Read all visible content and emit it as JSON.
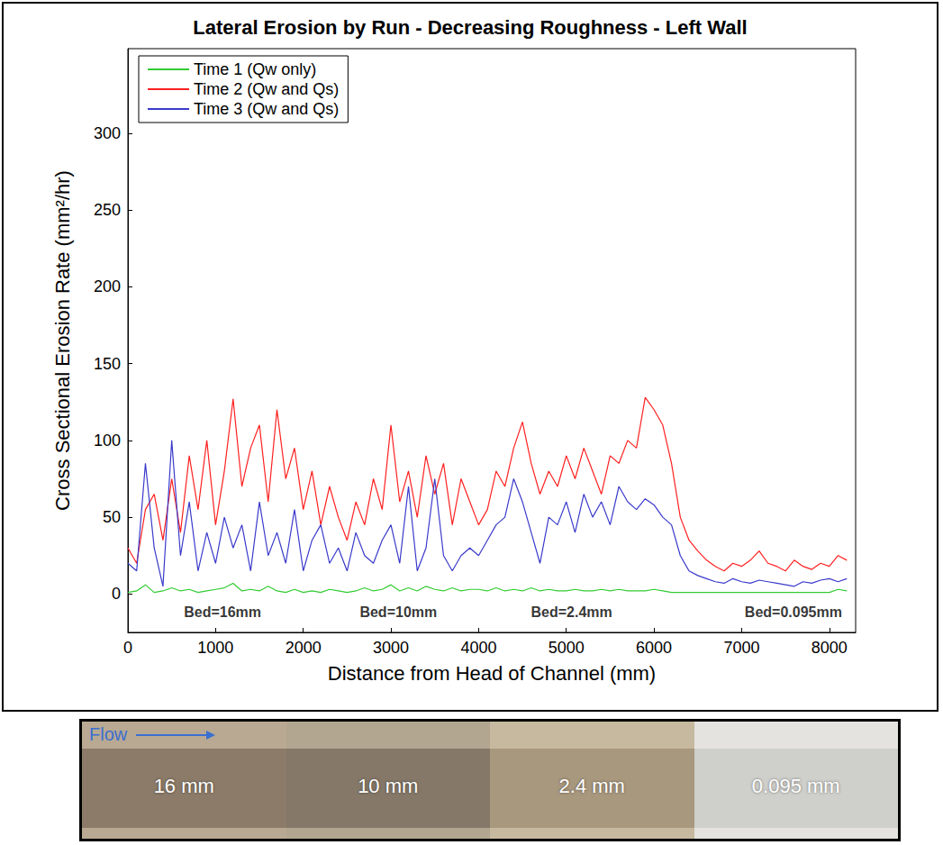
{
  "chart_data": {
    "type": "line",
    "title": "Lateral Erosion by Run - Decreasing Roughness - Left Wall",
    "x_label": "Distance from Head of Channel (mm)",
    "y_label": "Cross Sectional Erosion Rate (mm²/hr)",
    "x": [
      0,
      100,
      200,
      300,
      400,
      500,
      600,
      700,
      800,
      900,
      1000,
      1100,
      1200,
      1300,
      1400,
      1500,
      1600,
      1700,
      1800,
      1900,
      2000,
      2100,
      2200,
      2300,
      2400,
      2500,
      2600,
      2700,
      2800,
      2900,
      3000,
      3100,
      3200,
      3300,
      3400,
      3500,
      3600,
      3700,
      3800,
      3900,
      4000,
      4100,
      4200,
      4300,
      4400,
      4500,
      4600,
      4700,
      4800,
      4900,
      5000,
      5100,
      5200,
      5300,
      5400,
      5500,
      5600,
      5700,
      5800,
      5900,
      6000,
      6100,
      6200,
      6300,
      6400,
      6500,
      6600,
      6700,
      6800,
      6900,
      7000,
      7100,
      7200,
      7300,
      7400,
      7500,
      7600,
      7700,
      7800,
      7900,
      8000,
      8100,
      8200
    ],
    "series": [
      {
        "name": "Time 1 (Qw only)",
        "color": "#33cc33",
        "values": [
          1,
          2,
          6,
          1,
          2,
          4,
          2,
          3,
          1,
          2,
          3,
          4,
          7,
          2,
          3,
          2,
          5,
          2,
          1,
          3,
          1,
          2,
          1,
          3,
          2,
          1,
          2,
          4,
          2,
          3,
          6,
          2,
          4,
          2,
          5,
          3,
          2,
          4,
          2,
          3,
          3,
          2,
          4,
          2,
          3,
          2,
          4,
          2,
          3,
          2,
          2,
          3,
          2,
          2,
          3,
          2,
          3,
          2,
          2,
          2,
          3,
          2,
          1,
          1,
          1,
          1,
          1,
          1,
          1,
          1,
          1,
          1,
          1,
          1,
          1,
          1,
          1,
          1,
          1,
          1,
          1,
          3,
          2
        ]
      },
      {
        "name": "Time 2 (Qw and Qs)",
        "color": "#ff2020",
        "values": [
          30,
          20,
          55,
          65,
          35,
          75,
          40,
          90,
          55,
          100,
          45,
          80,
          127,
          70,
          95,
          110,
          60,
          120,
          75,
          95,
          55,
          80,
          45,
          70,
          50,
          35,
          60,
          45,
          75,
          55,
          110,
          60,
          80,
          50,
          90,
          65,
          85,
          45,
          75,
          60,
          45,
          55,
          80,
          70,
          95,
          112,
          85,
          65,
          80,
          70,
          90,
          75,
          95,
          80,
          65,
          90,
          85,
          100,
          95,
          128,
          120,
          110,
          85,
          50,
          35,
          28,
          22,
          18,
          15,
          20,
          18,
          22,
          28,
          20,
          18,
          15,
          22,
          18,
          16,
          20,
          18,
          25,
          22
        ]
      },
      {
        "name": "Time 3 (Qw and Qs)",
        "color": "#3a3acc",
        "values": [
          20,
          15,
          85,
          30,
          5,
          100,
          25,
          60,
          15,
          40,
          20,
          50,
          30,
          45,
          15,
          60,
          25,
          40,
          20,
          55,
          15,
          35,
          45,
          20,
          30,
          15,
          40,
          25,
          20,
          35,
          45,
          20,
          70,
          15,
          30,
          75,
          25,
          15,
          25,
          30,
          25,
          35,
          45,
          50,
          75,
          60,
          40,
          20,
          50,
          45,
          60,
          40,
          65,
          50,
          60,
          45,
          70,
          60,
          55,
          62,
          58,
          50,
          45,
          25,
          15,
          12,
          10,
          8,
          7,
          10,
          8,
          7,
          9,
          8,
          7,
          6,
          5,
          8,
          7,
          9,
          10,
          8,
          10
        ]
      }
    ],
    "xlim": [
      0,
      8300
    ],
    "xticks": [
      0,
      1000,
      2000,
      3000,
      4000,
      5000,
      6000,
      7000,
      8000
    ],
    "ylim": [
      -25,
      355
    ],
    "yticks": [
      0,
      50,
      100,
      150,
      200,
      250,
      300
    ],
    "grid": false,
    "legend": "upper left",
    "annotations": [
      {
        "text": "Bed=16mm",
        "x": 1080,
        "y": -12
      },
      {
        "text": "Bed=10mm",
        "x": 3085,
        "y": -12
      },
      {
        "text": "Bed=2.4mm",
        "x": 5060,
        "y": -12
      },
      {
        "text": "Bed=0.095mm",
        "x": 7590,
        "y": -12
      }
    ]
  },
  "strip": {
    "flow_label": "Flow",
    "segments": [
      "16 mm",
      "10 mm",
      "2.4 mm",
      "0.095 mm"
    ]
  }
}
